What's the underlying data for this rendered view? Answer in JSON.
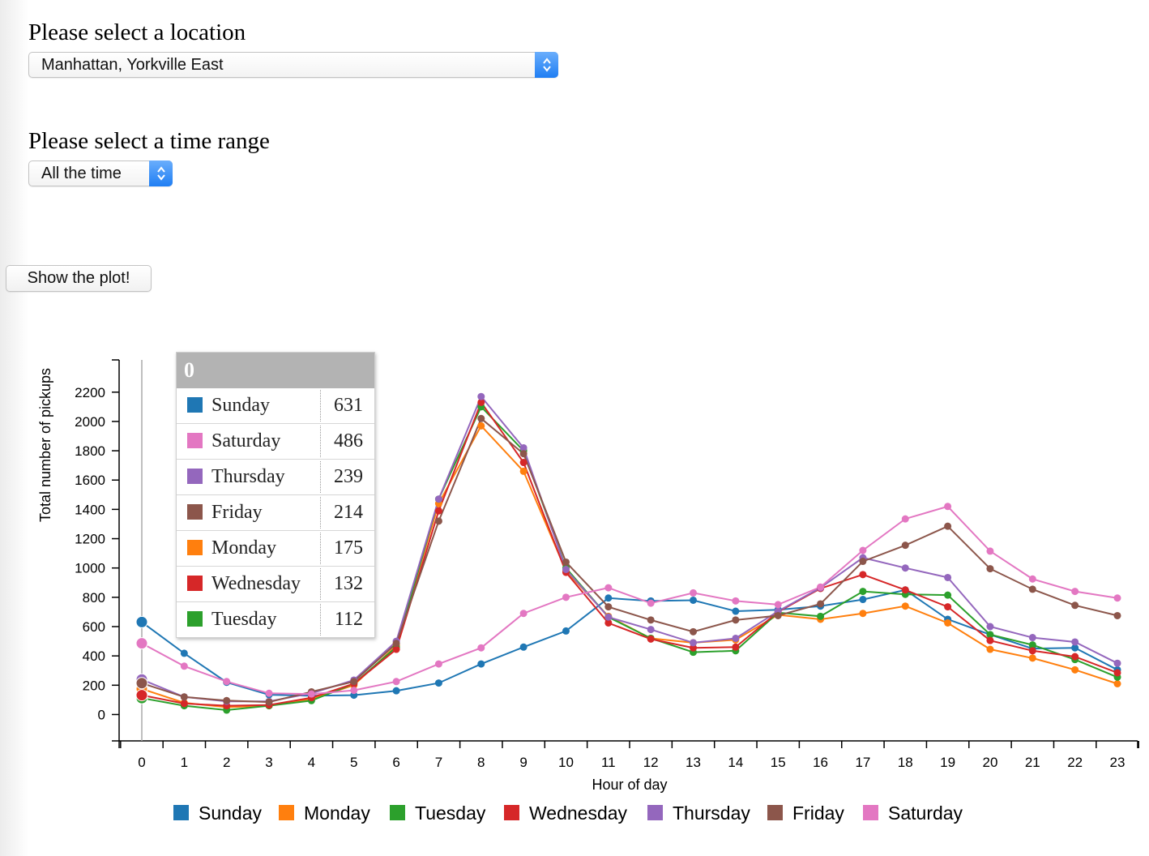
{
  "form": {
    "location_label": "Please select a location",
    "location_value": "Manhattan, Yorkville East",
    "time_label": "Please select a time range",
    "time_value": "All the time",
    "show_button": "Show the plot!"
  },
  "tooltip": {
    "title": "0",
    "rows": [
      {
        "name": "Sunday",
        "value": "631",
        "color": "#1f77b4"
      },
      {
        "name": "Saturday",
        "value": "486",
        "color": "#e377c2"
      },
      {
        "name": "Thursday",
        "value": "239",
        "color": "#9467bd"
      },
      {
        "name": "Friday",
        "value": "214",
        "color": "#8c564b"
      },
      {
        "name": "Monday",
        "value": "175",
        "color": "#ff7f0e"
      },
      {
        "name": "Wednesday",
        "value": "132",
        "color": "#d62728"
      },
      {
        "name": "Tuesday",
        "value": "112",
        "color": "#2ca02c"
      }
    ]
  },
  "chart_data": {
    "type": "line",
    "title": "",
    "xlabel": "Hour of day",
    "ylabel": "Total number of pickups",
    "x": [
      0,
      1,
      2,
      3,
      4,
      5,
      6,
      7,
      8,
      9,
      10,
      11,
      12,
      13,
      14,
      15,
      16,
      17,
      18,
      19,
      20,
      21,
      22,
      23
    ],
    "xlim": [
      0,
      23
    ],
    "ylim": [
      -180,
      2420
    ],
    "yticks": [
      0,
      200,
      400,
      600,
      800,
      1000,
      1200,
      1400,
      1600,
      1800,
      2000,
      2200
    ],
    "legend_position": "bottom",
    "highlight_x": 0,
    "series": [
      {
        "name": "Sunday",
        "color": "#1f77b4",
        "values": [
          631,
          418,
          220,
          135,
          128,
          132,
          162,
          215,
          345,
          460,
          570,
          795,
          775,
          780,
          705,
          715,
          740,
          785,
          850,
          650,
          545,
          450,
          455,
          305
        ]
      },
      {
        "name": "Monday",
        "color": "#ff7f0e",
        "values": [
          175,
          80,
          50,
          60,
          105,
          200,
          470,
          1440,
          1970,
          1660,
          980,
          670,
          520,
          490,
          510,
          680,
          650,
          690,
          740,
          625,
          445,
          385,
          305,
          210
        ]
      },
      {
        "name": "Tuesday",
        "color": "#2ca02c",
        "values": [
          112,
          60,
          30,
          60,
          95,
          210,
          460,
          1470,
          2100,
          1800,
          1000,
          665,
          520,
          425,
          435,
          695,
          670,
          840,
          820,
          815,
          545,
          475,
          375,
          255
        ]
      },
      {
        "name": "Wednesday",
        "color": "#d62728",
        "values": [
          132,
          75,
          60,
          65,
          115,
          210,
          445,
          1390,
          2130,
          1720,
          970,
          625,
          515,
          455,
          460,
          700,
          860,
          955,
          850,
          735,
          505,
          435,
          395,
          285
        ]
      },
      {
        "name": "Thursday",
        "color": "#9467bd",
        "values": [
          239,
          120,
          90,
          90,
          145,
          235,
          500,
          1470,
          2170,
          1820,
          990,
          665,
          580,
          490,
          520,
          705,
          865,
          1070,
          1000,
          935,
          600,
          525,
          495,
          350
        ]
      },
      {
        "name": "Friday",
        "color": "#8c564b",
        "values": [
          214,
          120,
          95,
          85,
          155,
          225,
          485,
          1320,
          2020,
          1780,
          1040,
          735,
          645,
          565,
          645,
          675,
          755,
          1045,
          1155,
          1285,
          995,
          855,
          745,
          675
        ]
      },
      {
        "name": "Saturday",
        "color": "#e377c2",
        "values": [
          486,
          330,
          225,
          145,
          140,
          165,
          225,
          345,
          455,
          690,
          800,
          865,
          760,
          830,
          775,
          750,
          870,
          1120,
          1335,
          1420,
          1115,
          925,
          840,
          795
        ]
      }
    ]
  }
}
